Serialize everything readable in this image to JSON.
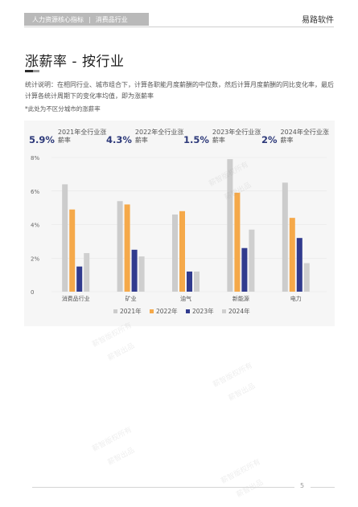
{
  "header": {
    "crumb_left": "人力资源核心指标",
    "crumb_sep": "|",
    "crumb_right": "消费品行业",
    "brand": "易路软件"
  },
  "page": {
    "title": "涨薪率 - 按行业",
    "description": "统计说明：在相同行业、城市组合下，计算各职能月度薪酬的中位数，然后计算月度薪酬的同比变化率，最后计算各统计周期下的变化率均值，即为涨薪率",
    "note": "*此处为不区分城市的涨薪率",
    "page_number": "5"
  },
  "kpis": [
    {
      "value": "5.9%",
      "label": "2021年全行业涨薪率"
    },
    {
      "value": "4.3%",
      "label": "2022年全行业涨薪率"
    },
    {
      "value": "1.5%",
      "label": "2023年全行业涨薪率"
    },
    {
      "value": "2%",
      "label": "2024年全行业涨薪率"
    }
  ],
  "watermark": {
    "line1": "薪智版权所有",
    "line2": "薪智出品"
  },
  "chart_data": {
    "type": "bar",
    "categories": [
      "消费品行业",
      "矿业",
      "油气",
      "新能源",
      "电力"
    ],
    "series": [
      {
        "name": "2021年",
        "values": [
          6.4,
          5.4,
          4.6,
          7.9,
          6.5
        ]
      },
      {
        "name": "2022年",
        "values": [
          4.9,
          5.2,
          4.8,
          5.9,
          4.4
        ]
      },
      {
        "name": "2023年",
        "values": [
          1.5,
          2.5,
          1.2,
          2.6,
          3.2
        ]
      },
      {
        "name": "2024年",
        "values": [
          2.3,
          2.1,
          1.2,
          3.7,
          1.7
        ]
      }
    ],
    "yticks": [
      "0",
      "2%",
      "4%",
      "6%",
      "8%"
    ],
    "ylim": [
      0,
      8
    ],
    "grid": true,
    "legend": "bottom-center",
    "colors": [
      "#cccccc",
      "#f5a94a",
      "#313b8e",
      "#cfcfcf"
    ]
  }
}
